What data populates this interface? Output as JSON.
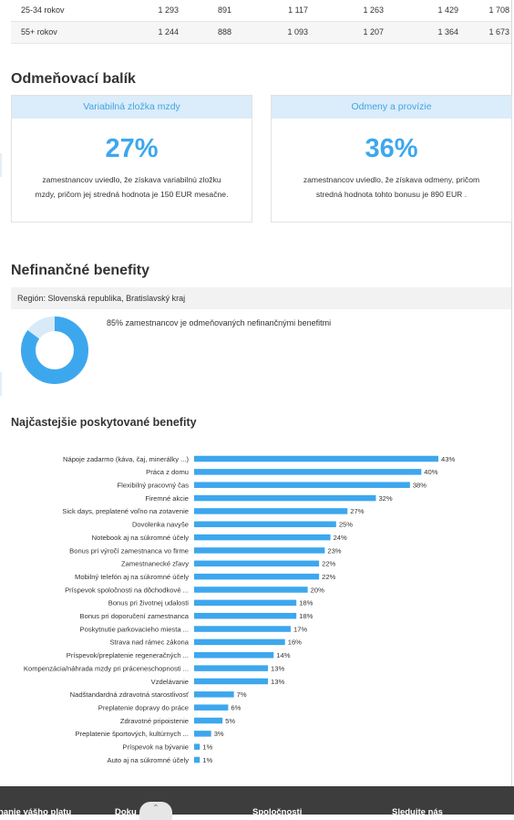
{
  "age_table": {
    "rows": [
      {
        "label": "25-34 rokov",
        "values": [
          "1 293",
          "891",
          "1 117",
          "1 263",
          "1 429",
          "1 708"
        ]
      },
      {
        "label": "55+ rokov",
        "values": [
          "1 244",
          "888",
          "1 093",
          "1 207",
          "1 364",
          "1 673"
        ]
      }
    ]
  },
  "reward": {
    "title": "Odmeňovací balík",
    "cards": [
      {
        "heading": "Variabilná zložka mzdy",
        "percent": "27%",
        "text_lines": [
          "zamestnancov uviedlo, že získava variabilnú zložku",
          "mzdy, pričom jej stredná hodnota je 150 EUR mesačne."
        ]
      },
      {
        "heading": "Odmeny a provízie",
        "percent": "36%",
        "text_lines": [
          "zamestnancov uviedlo, že získava odmeny, pričom",
          "stredná hodnota tohto bonusu je 890 EUR ."
        ]
      }
    ]
  },
  "benefits": {
    "title": "Nefinančné benefity",
    "region": "Región: Slovenská republika, Bratislavský kraj",
    "donut_value": 0.85,
    "donut_text": "85% zamestnancov je odmeňovaných nefinančnými benefitmi",
    "colors": {
      "accent": "#3da7ee",
      "light": "#d8eaf7"
    }
  },
  "top_benefits_title": "Najčastejšie poskytované benefity",
  "chart_data": {
    "type": "bar",
    "orientation": "horizontal",
    "categories": [
      "Nápoje zadarmo (káva, čaj, minerálky ...)",
      "Práca z domu",
      "Flexibilný pracovný čas",
      "Firemné akcie",
      "Sick days, preplatené voľno na zotavenie",
      "Dovolenka navyše",
      "Notebook aj na súkromné účely",
      "Bonus pri výročí zamestnanca vo firme",
      "Zamestnanecké zľavy",
      "Mobilný telefón aj na súkromné účely",
      "Príspevok spoločnosti na dôchodkové ...",
      "Bonus pri životnej udalosti",
      "Bonus pri doporučení zamestnanca",
      "Poskytnutie parkovacieho miesta ...",
      "Strava nad rámec zákona",
      "Príspevok/preplatenie regeneračných ...",
      "Kompenzácia/náhrada mzdy pri práceneschopnosti ...",
      "Vzdelávanie",
      "Nadštandardná zdravotná starostlivosť",
      "Preplatenie dopravy do práce",
      "Zdravotné pripoistenie",
      "Preplatenie športových, kultúrnych ...",
      "Príspevok na bývanie",
      "Auto aj na súkromné účely"
    ],
    "values": [
      43,
      40,
      38,
      32,
      27,
      25,
      24,
      23,
      22,
      22,
      20,
      18,
      18,
      17,
      16,
      14,
      13,
      13,
      7,
      6,
      5,
      3,
      1,
      1
    ],
    "value_suffix": "%",
    "color": "#3da7ee",
    "xlim": [
      0,
      43
    ]
  },
  "footer": {
    "items": [
      "nanie vášho platu",
      "Doku",
      "Spoločnosti",
      "Sledujte nás"
    ],
    "up_icon": "chevron-up-icon"
  }
}
